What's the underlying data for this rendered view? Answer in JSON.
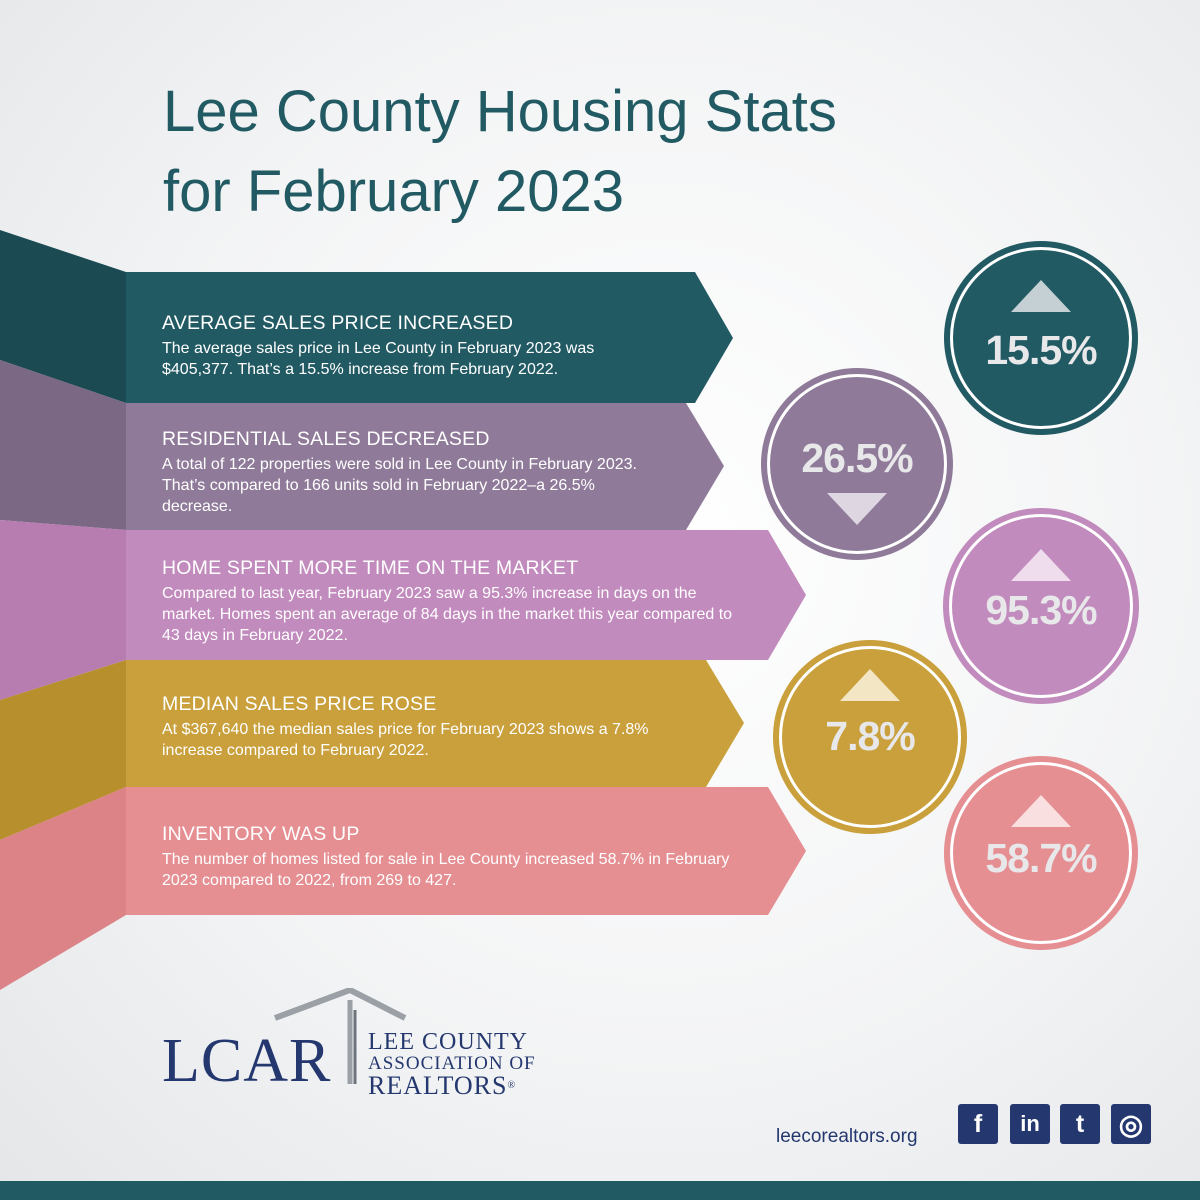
{
  "title": {
    "line1": "Lee County Housing Stats",
    "line2": "for February 2023"
  },
  "colors": {
    "teal": "#225a64",
    "purple": "#8f7b99",
    "orchid": "#c28bbd",
    "gold": "#c9a03b",
    "pink": "#e58f93",
    "navy": "#24386f"
  },
  "stats": [
    {
      "heading": "AVERAGE SALES PRICE INCREASED",
      "body": "The average sales price in Lee County in February 2023 was $405,377. That’s a 15.5% increase from February 2022.",
      "percent": "15.5%",
      "direction": "up"
    },
    {
      "heading": "RESIDENTIAL SALES DECREASED",
      "body": "A total of 122 properties were sold in Lee County in February 2023. That’s compared to 166 units sold in February 2022–a 26.5% decrease.",
      "percent": "26.5%",
      "direction": "down"
    },
    {
      "heading": "HOME SPENT MORE TIME ON THE MARKET",
      "body": "Compared to last year, February 2023 saw a 95.3% increase in days on the market. Homes spent an average of 84 days in the market this year compared to 43 days in February 2022.",
      "percent": "95.3%",
      "direction": "up"
    },
    {
      "heading": "MEDIAN SALES PRICE ROSE",
      "body": "At $367,640 the median sales price for February 2023 shows a 7.8% increase compared to February 2022.",
      "percent": "7.8%",
      "direction": "up"
    },
    {
      "heading": "INVENTORY WAS UP",
      "body": "The number of homes listed for sale in Lee County increased 58.7% in February 2023 compared to 2022, from 269 to 427.",
      "percent": "58.7%",
      "direction": "up"
    }
  ],
  "logo": {
    "letters": "LCAR",
    "line1": "LEE COUNTY",
    "line2": "ASSOCIATION OF",
    "line3": "REALTORS",
    "registered": "®"
  },
  "footer": {
    "website": "leecorealtors.org",
    "social": [
      {
        "icon": "facebook-icon",
        "glyph": "f"
      },
      {
        "icon": "linkedin-icon",
        "glyph": "in"
      },
      {
        "icon": "twitter-icon",
        "glyph": "t"
      },
      {
        "icon": "instagram-icon",
        "glyph": "◎"
      }
    ]
  }
}
